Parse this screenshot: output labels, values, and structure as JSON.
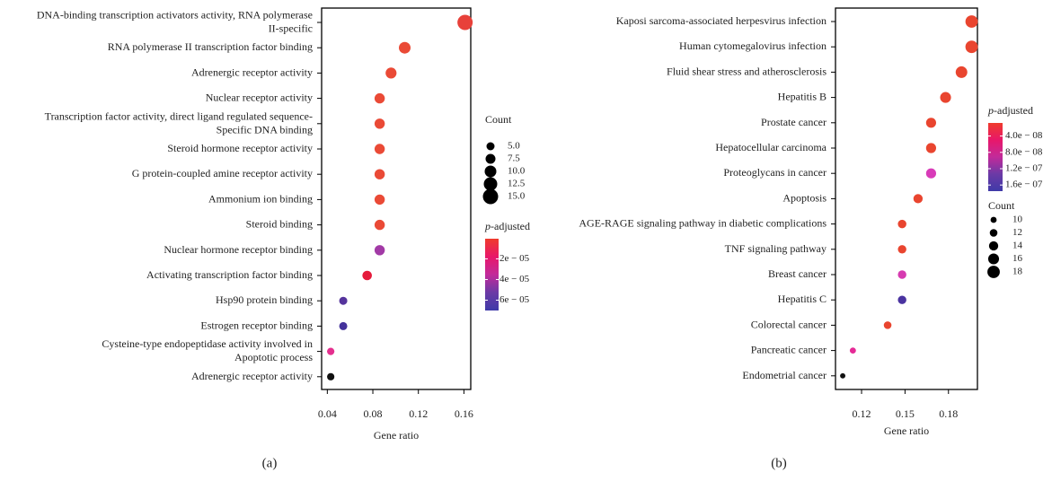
{
  "chart_data": [
    {
      "type": "scatter",
      "panel_label": "(a)",
      "xlabel": "Gene ratio",
      "ylabel": "",
      "xlim": [
        0.035,
        0.166
      ],
      "xticks": [
        0.04,
        0.08,
        0.12,
        0.16
      ],
      "xtick_labels": [
        "0.04",
        "0.08",
        "0.12",
        "0.16"
      ],
      "categories": [
        [
          "DNA-binding transcription activators activity, RNA polymerase",
          "II-specific"
        ],
        [
          "RNA polymerase II transcription factor binding"
        ],
        [
          "Adrenergic receptor activity"
        ],
        [
          "Nuclear receptor activity"
        ],
        [
          "Transcription factor activity, direct ligand regulated sequence-",
          "Specific DNA binding"
        ],
        [
          "Steroid hormone receptor activity"
        ],
        [
          "G protein-coupled amine receptor activity"
        ],
        [
          "Ammonium ion binding"
        ],
        [
          "Steroid binding"
        ],
        [
          "Nuclear hormone receptor binding"
        ],
        [
          "Activating transcription factor binding"
        ],
        [
          "Hsp90 protein binding"
        ],
        [
          "Estrogen receptor binding"
        ],
        [
          "Cysteine-type endopeptidase activity involved in",
          "Apoptotic process"
        ],
        [
          "Adrenergic receptor activity"
        ]
      ],
      "gene_ratio": [
        0.161,
        0.108,
        0.096,
        0.086,
        0.086,
        0.086,
        0.086,
        0.086,
        0.086,
        0.086,
        0.075,
        0.054,
        0.054,
        0.043,
        0.043
      ],
      "count": [
        15,
        10,
        9,
        8,
        8,
        8,
        8,
        8,
        8,
        8,
        7,
        5,
        5,
        4,
        4
      ],
      "color_hex": [
        "#e8413a",
        "#ea4a36",
        "#ea4a36",
        "#ea4a36",
        "#ea4a36",
        "#ea4a36",
        "#ea4a36",
        "#ea4a36",
        "#ea4a36",
        "#a23aa6",
        "#e51b3c",
        "#55349c",
        "#44329b",
        "#e42f8e",
        "#111111"
      ],
      "legend_size": {
        "title": "Count",
        "values": [
          "5.0",
          "7.5",
          "10.0",
          "12.5",
          "15.0"
        ],
        "counts": [
          5,
          7.5,
          10,
          12.5,
          15
        ]
      },
      "legend_color": {
        "title_italic": "p",
        "title_rest": "-adjusted",
        "tick_labels": [
          "2e − 05",
          "4e − 05",
          "6e − 05"
        ],
        "tick_values": [
          2e-05,
          4e-05,
          6e-05
        ],
        "range": [
          5e-07,
          7e-05
        ],
        "colors": [
          "#ef3b2c",
          "#e8176a",
          "#c22a9a",
          "#6b3aa6",
          "#3f3aa8"
        ]
      }
    },
    {
      "type": "scatter",
      "panel_label": "(b)",
      "xlabel": "Gene ratio",
      "ylabel": "",
      "xlim": [
        0.102,
        0.2
      ],
      "xticks": [
        0.12,
        0.15,
        0.18
      ],
      "xtick_labels": [
        "0.12",
        "0.15",
        "0.18"
      ],
      "categories": [
        [
          "Kaposi sarcoma-associated herpesvirus infection"
        ],
        [
          "Human cytomegalovirus infection"
        ],
        [
          "Fluid shear stress and atherosclerosis"
        ],
        [
          "Hepatitis B"
        ],
        [
          "Prostate cancer"
        ],
        [
          "Hepatocellular carcinoma"
        ],
        [
          "Proteoglycans in cancer"
        ],
        [
          "Apoptosis"
        ],
        [
          "AGE-RAGE signaling pathway in diabetic complications"
        ],
        [
          "TNF signaling pathway"
        ],
        [
          "Breast cancer"
        ],
        [
          "Hepatitis C"
        ],
        [
          "Colorectal cancer"
        ],
        [
          "Pancreatic cancer"
        ],
        [
          "Endometrial cancer"
        ]
      ],
      "gene_ratio": [
        0.196,
        0.196,
        0.189,
        0.178,
        0.168,
        0.168,
        0.168,
        0.159,
        0.148,
        0.148,
        0.148,
        0.148,
        0.138,
        0.114,
        0.107
      ],
      "count": [
        18,
        18,
        17,
        16,
        15,
        15,
        15,
        14,
        13,
        13,
        13,
        13,
        12,
        10,
        9
      ],
      "color_hex": [
        "#e9452f",
        "#e9452f",
        "#e9452f",
        "#e9452f",
        "#e9452f",
        "#e9452f",
        "#d83bb8",
        "#e9452f",
        "#e9452f",
        "#e9452f",
        "#d63bb0",
        "#4a33a0",
        "#e9452f",
        "#e52a96",
        "#111111"
      ],
      "legend_size": {
        "title": "Count",
        "values": [
          "10",
          "12",
          "14",
          "16",
          "18"
        ],
        "counts": [
          10,
          12,
          14,
          16,
          18
        ]
      },
      "legend_color": {
        "title_italic": "p",
        "title_rest": "-adjusted",
        "tick_labels": [
          "4.0e − 08",
          "8.0e − 08",
          "1.2e − 07",
          "1.6e − 07"
        ],
        "tick_values": [
          4e-08,
          8e-08,
          1.2e-07,
          1.6e-07
        ],
        "range": [
          8e-09,
          1.75e-07
        ],
        "colors": [
          "#ef3b2c",
          "#e8176a",
          "#c22a9a",
          "#6b3aa6",
          "#3f3aa8"
        ]
      }
    }
  ]
}
